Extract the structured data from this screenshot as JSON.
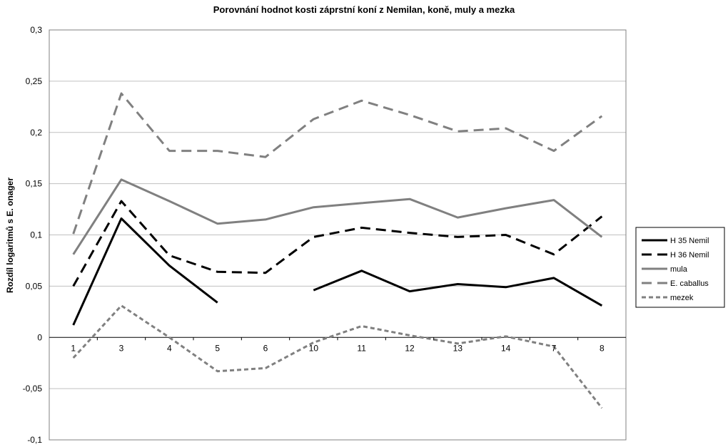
{
  "chart_data": {
    "type": "line",
    "title": "Porovnání hodnot  kosti záprstní koní z Nemilan, koně, muly a mezka",
    "xlabel": "",
    "ylabel": "Rozdíl logaritmů s E. onager",
    "categories": [
      "1",
      "3",
      "4",
      "5",
      "6",
      "10",
      "11",
      "12",
      "13",
      "14",
      "7",
      "8"
    ],
    "ylim": [
      -0.1,
      0.3
    ],
    "yticks": [
      -0.1,
      -0.05,
      0,
      0.05,
      0.1,
      0.15,
      0.2,
      0.25,
      0.3
    ],
    "ytick_labels": [
      "-0,1",
      "-0,05",
      "0",
      "0,05",
      "0,1",
      "0,15",
      "0,2",
      "0,25",
      "0,3"
    ],
    "grid": true,
    "legend_position": "right",
    "series": [
      {
        "name": "H 35 Nemil",
        "color": "#000000",
        "dash": "solid",
        "values": [
          0.012,
          0.116,
          0.07,
          0.034,
          null,
          0.046,
          0.065,
          0.045,
          0.052,
          0.049,
          0.058,
          0.031
        ]
      },
      {
        "name": "H 36 Nemil",
        "color": "#000000",
        "dash": "long-dash",
        "values": [
          0.05,
          0.133,
          0.08,
          0.064,
          0.063,
          0.098,
          0.107,
          0.102,
          0.098,
          0.1,
          0.081,
          0.118
        ]
      },
      {
        "name": "mula",
        "color": "#808080",
        "dash": "solid",
        "values": [
          0.081,
          0.154,
          0.133,
          0.111,
          0.115,
          0.127,
          0.131,
          0.135,
          0.117,
          0.126,
          0.134,
          0.098
        ]
      },
      {
        "name": "E. caballus",
        "color": "#808080",
        "dash": "long-dash",
        "values": [
          0.101,
          0.238,
          0.182,
          0.182,
          0.176,
          0.213,
          0.231,
          0.217,
          0.201,
          0.204,
          0.182,
          0.216
        ]
      },
      {
        "name": "mezek",
        "color": "#808080",
        "dash": "short-dash",
        "values": [
          -0.02,
          0.031,
          0.0,
          -0.033,
          -0.03,
          -0.005,
          0.011,
          0.002,
          -0.006,
          0.001,
          -0.009,
          -0.069
        ]
      }
    ]
  }
}
